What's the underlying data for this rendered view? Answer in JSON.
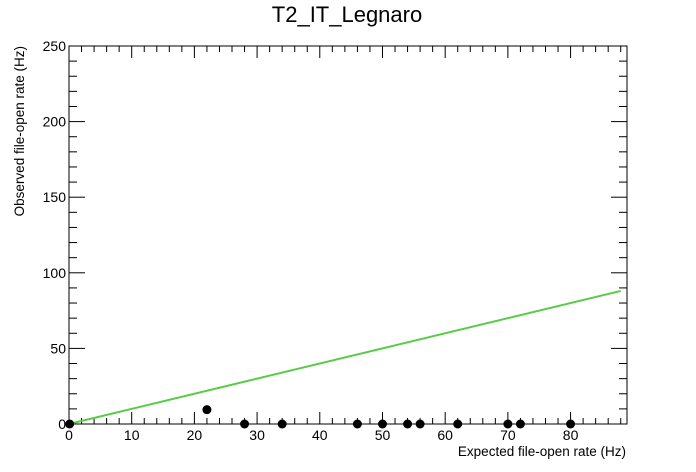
{
  "chart_data": {
    "type": "scatter",
    "title": "T2_IT_Legnaro",
    "xlabel": "Expected file-open rate (Hz)",
    "ylabel": "Observed file-open rate (Hz)",
    "xlim": [
      0,
      89
    ],
    "ylim": [
      0,
      250
    ],
    "x_ticks": [
      0,
      10,
      20,
      30,
      40,
      50,
      60,
      70,
      80
    ],
    "y_ticks": [
      0,
      50,
      100,
      150,
      200,
      250
    ],
    "grid": false,
    "series": [
      {
        "type": "scatter",
        "color": "#000000",
        "x": [
          0.1,
          22,
          28,
          34,
          46,
          50,
          54,
          56,
          62,
          70,
          72,
          80
        ],
        "y": [
          0,
          9.5,
          0,
          0,
          0,
          0,
          0,
          0,
          0,
          0,
          0,
          0
        ]
      },
      {
        "type": "line",
        "color": "#55cc44",
        "x": [
          0,
          88
        ],
        "y": [
          0,
          88
        ]
      }
    ]
  }
}
